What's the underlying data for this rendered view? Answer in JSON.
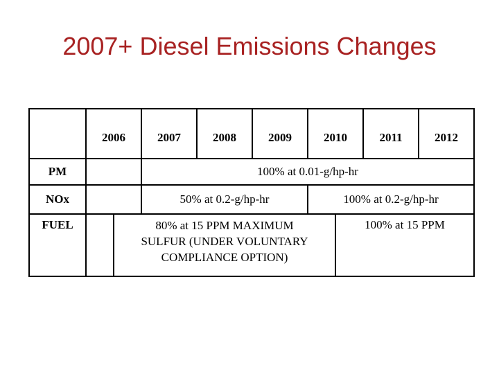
{
  "slide_title": "2007+ Diesel Emissions Changes",
  "colors": {
    "title_text": "#A82222",
    "table_border": "#000000",
    "table_text": "#000000",
    "background": "#FFFFFF"
  },
  "table": {
    "corner_cell": "",
    "year_headers": [
      "2006",
      "2007",
      "2008",
      "2009",
      "2010",
      "2011",
      "2012"
    ],
    "pm_row": {
      "label": "PM",
      "blank_2006": "",
      "phase_2007_2012": "100% at 0.01-g/hp-hr"
    },
    "nox_row": {
      "label": "NOx",
      "blank_2006": "",
      "phase_2007_2009": "50% at 0.2-g/hp-hr",
      "phase_2010_2012": "100% at 0.2-g/hp-hr"
    },
    "fuel_row": {
      "label": "FUEL",
      "blank_early_2006": "",
      "phase_mid2006_mid2010_lines": [
        "80% at 15 PPM MAXIMUM",
        "SULFUR (UNDER VOLUNTARY",
        "COMPLIANCE OPTION)"
      ],
      "phase_mid2010_2012": "100% at 15 PPM"
    }
  }
}
